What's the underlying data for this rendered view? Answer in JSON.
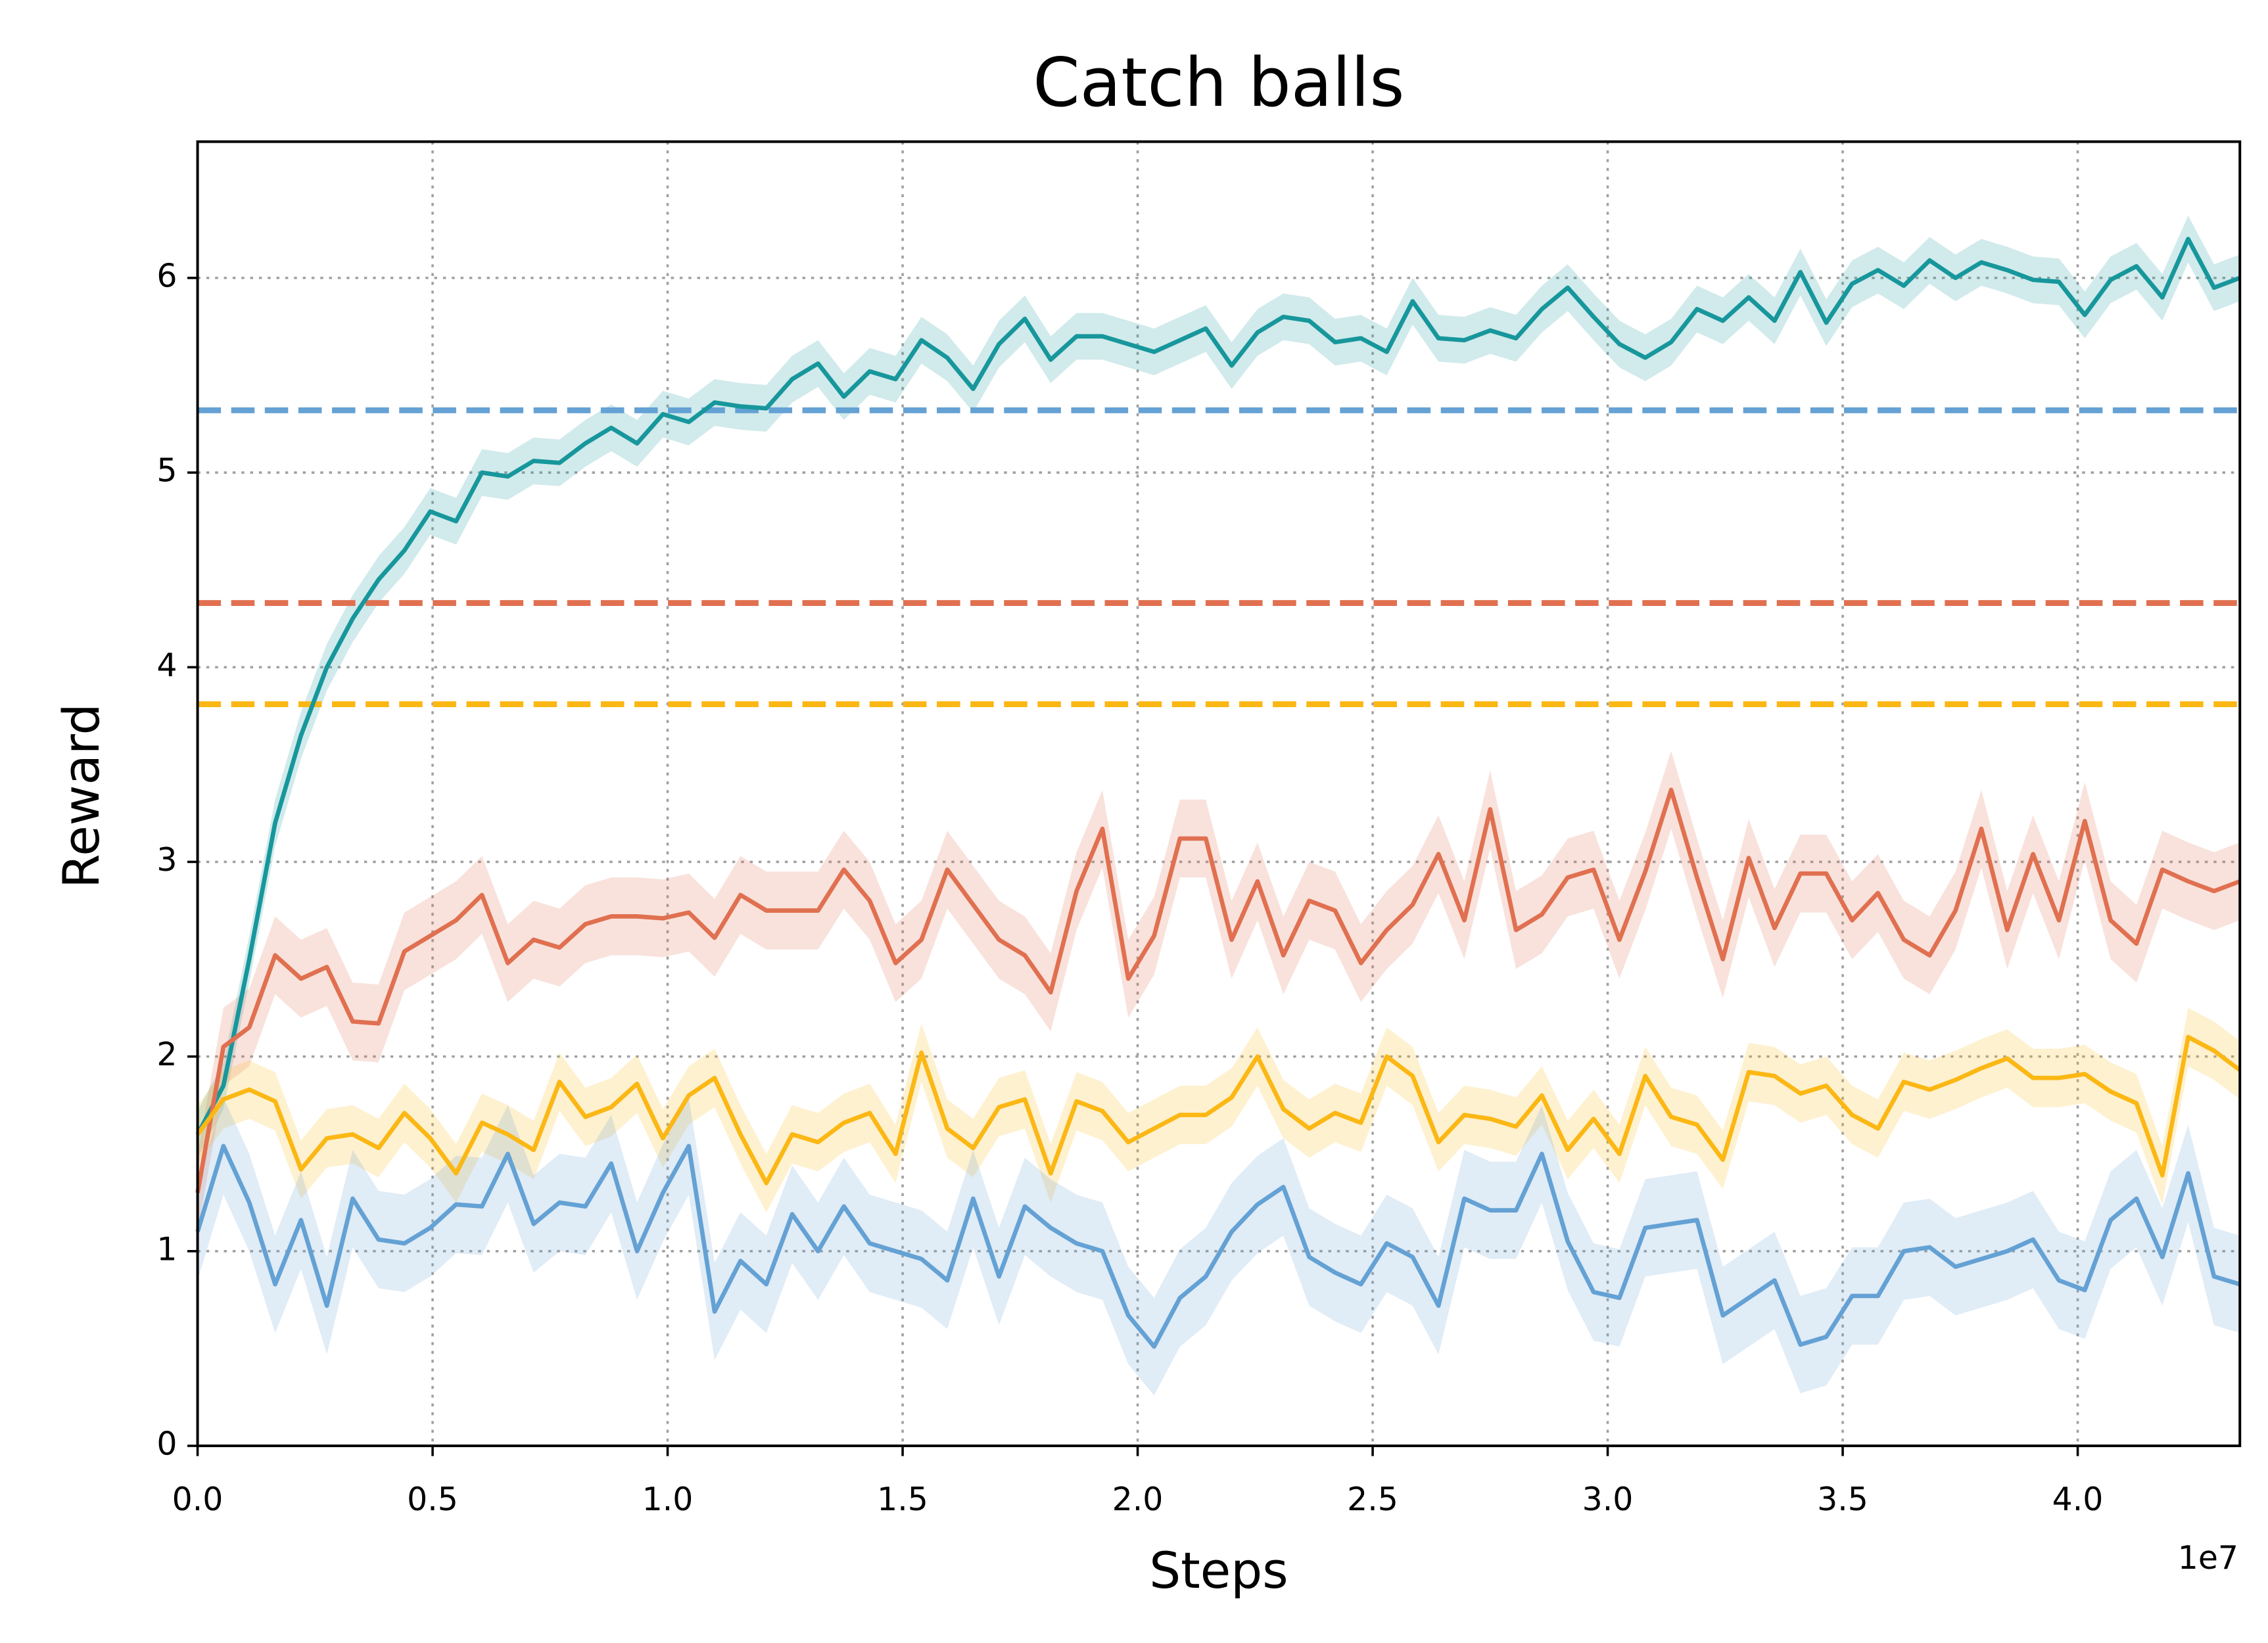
{
  "chart_data": {
    "type": "line",
    "title": "Catch balls",
    "x_label": "Steps",
    "y_label": "Reward",
    "x_offset_label": "1e7",
    "xlim": [
      0,
      43450000
    ],
    "ylim": [
      0,
      6.7
    ],
    "xticks": [
      {
        "value": 0,
        "label": "0.0"
      },
      {
        "value": 5000000,
        "label": "0.5"
      },
      {
        "value": 10000000,
        "label": "1.0"
      },
      {
        "value": 15000000,
        "label": "1.5"
      },
      {
        "value": 20000000,
        "label": "2.0"
      },
      {
        "value": 25000000,
        "label": "2.5"
      },
      {
        "value": 30000000,
        "label": "3.0"
      },
      {
        "value": 35000000,
        "label": "3.5"
      },
      {
        "value": 40000000,
        "label": "4.0"
      }
    ],
    "yticks": [
      0,
      1,
      2,
      3,
      4,
      5,
      6
    ],
    "grid": true,
    "x": [
      0,
      550000,
      1100000,
      1650000,
      2200000,
      2750000,
      3300000,
      3850000,
      4400000,
      4950000,
      5500000,
      6050000,
      6600000,
      7150000,
      7700000,
      8250000,
      8800000,
      9350000,
      9900000,
      10450000,
      11000000,
      11550000,
      12100000,
      12650000,
      13200000,
      13750000,
      14300000,
      14850000,
      15400000,
      15950000,
      16500000,
      17050000,
      17600000,
      18150000,
      18700000,
      19250000,
      19800000,
      20350000,
      20900000,
      21450000,
      22000000,
      22550000,
      23100000,
      23650000,
      24200000,
      24750000,
      25300000,
      25850000,
      26400000,
      26950000,
      27500000,
      28050000,
      28600000,
      29150000,
      29700000,
      30250000,
      30800000,
      31350000,
      31900000,
      32450000,
      33000000,
      33550000,
      34100000,
      34650000,
      35200000,
      35750000,
      36300000,
      36850000,
      37400000,
      37950000,
      38500000,
      39050000,
      39600000,
      40150000,
      40700000,
      41250000,
      41800000,
      42350000,
      42900000,
      43450000
    ],
    "series": [
      {
        "color": "#17979c",
        "band": 0.12,
        "values": [
          1.6,
          1.85,
          2.5,
          3.2,
          3.65,
          4.0,
          4.25,
          4.45,
          4.6,
          4.8,
          4.75,
          5.0,
          4.98,
          5.06,
          5.05,
          5.15,
          5.23,
          5.15,
          5.3,
          5.26,
          5.36,
          5.34,
          5.33,
          5.48,
          5.56,
          5.39,
          5.52,
          5.48,
          5.68,
          5.59,
          5.43,
          5.66,
          5.79,
          5.58,
          5.7,
          5.7,
          5.66,
          5.62,
          5.68,
          5.74,
          5.55,
          5.72,
          5.8,
          5.78,
          5.67,
          5.69,
          5.62,
          5.88,
          5.69,
          5.68,
          5.73,
          5.69,
          5.84,
          5.95,
          5.8,
          5.66,
          5.59,
          5.67,
          5.84,
          5.78,
          5.9,
          5.78,
          6.03,
          5.77,
          5.97,
          6.04,
          5.96,
          6.09,
          6.0,
          6.08,
          6.04,
          5.99,
          5.98,
          5.81,
          5.99,
          6.06,
          5.9,
          6.2,
          5.95,
          6.0
        ]
      },
      {
        "color": "#e07050",
        "band": 0.2,
        "values": [
          1.3,
          2.05,
          2.15,
          2.52,
          2.4,
          2.46,
          2.18,
          2.17,
          2.54,
          2.62,
          2.7,
          2.83,
          2.48,
          2.6,
          2.56,
          2.68,
          2.72,
          2.72,
          2.71,
          2.74,
          2.61,
          2.83,
          2.75,
          2.75,
          2.75,
          2.96,
          2.8,
          2.48,
          2.6,
          2.96,
          2.78,
          2.6,
          2.52,
          2.33,
          2.85,
          3.17,
          2.4,
          2.62,
          3.12,
          3.12,
          2.6,
          2.9,
          2.52,
          2.8,
          2.75,
          2.48,
          2.65,
          2.78,
          3.04,
          2.7,
          3.27,
          2.65,
          2.73,
          2.92,
          2.96,
          2.6,
          2.95,
          3.37,
          2.92,
          2.5,
          3.02,
          2.66,
          2.94,
          2.94,
          2.7,
          2.84,
          2.6,
          2.52,
          2.75,
          3.17,
          2.65,
          3.04,
          2.7,
          3.21,
          2.7,
          2.58,
          2.96,
          2.9,
          2.85,
          2.9
        ]
      },
      {
        "color": "#fbb714",
        "band": 0.15,
        "values": [
          1.6,
          1.78,
          1.83,
          1.77,
          1.42,
          1.58,
          1.6,
          1.53,
          1.71,
          1.58,
          1.4,
          1.66,
          1.6,
          1.52,
          1.87,
          1.69,
          1.74,
          1.86,
          1.58,
          1.8,
          1.89,
          1.6,
          1.35,
          1.6,
          1.56,
          1.66,
          1.71,
          1.5,
          2.02,
          1.63,
          1.53,
          1.74,
          1.78,
          1.4,
          1.77,
          1.72,
          1.56,
          1.63,
          1.7,
          1.7,
          1.79,
          2.0,
          1.73,
          1.63,
          1.71,
          1.66,
          2.0,
          1.9,
          1.56,
          1.7,
          1.68,
          1.64,
          1.8,
          1.52,
          1.68,
          1.5,
          1.9,
          1.69,
          1.65,
          1.47,
          1.92,
          1.9,
          1.81,
          1.85,
          1.7,
          1.63,
          1.87,
          1.83,
          1.88,
          1.94,
          1.99,
          1.89,
          1.89,
          1.91,
          1.82,
          1.76,
          1.39,
          2.1,
          2.03,
          1.93
        ]
      },
      {
        "color": "#64a1d4",
        "band": 0.25,
        "values": [
          1.1,
          1.54,
          1.25,
          0.83,
          1.16,
          0.72,
          1.27,
          1.06,
          1.04,
          1.12,
          1.24,
          1.23,
          1.5,
          1.14,
          1.25,
          1.23,
          1.45,
          1.0,
          1.3,
          1.54,
          0.69,
          0.95,
          0.83,
          1.19,
          1.0,
          1.23,
          1.04,
          1.0,
          0.96,
          0.85,
          1.27,
          0.87,
          1.23,
          1.12,
          1.04,
          1.0,
          0.67,
          0.51,
          0.76,
          0.87,
          1.1,
          1.24,
          1.33,
          0.97,
          0.89,
          0.83,
          1.04,
          0.97,
          0.72,
          1.27,
          1.21,
          1.21,
          1.5,
          1.05,
          0.79,
          0.76,
          1.12,
          1.14,
          1.16,
          0.67,
          0.76,
          0.85,
          0.52,
          0.56,
          0.77,
          0.77,
          1.0,
          1.02,
          0.92,
          0.96,
          1.0,
          1.06,
          0.85,
          0.8,
          1.16,
          1.27,
          0.97,
          1.4,
          0.87,
          0.83
        ]
      }
    ],
    "hlines": [
      {
        "value": 5.32,
        "color": "#64a1d4"
      },
      {
        "value": 4.33,
        "color": "#e07050"
      },
      {
        "value": 3.81,
        "color": "#fbb714"
      }
    ]
  }
}
